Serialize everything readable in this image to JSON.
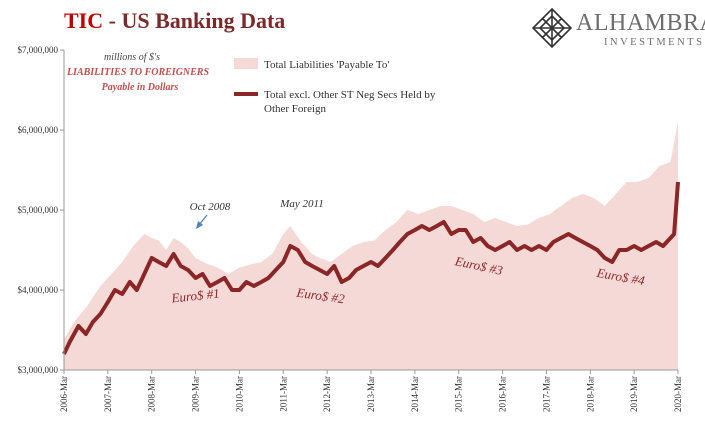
{
  "header": {
    "title_part1": "TIC",
    "title_part2": "- US Banking Data",
    "logo_name": "ALHAMBRA",
    "logo_sub": "INVESTMENTS",
    "logo_icon": "diamond-lattice-icon"
  },
  "colors": {
    "area_fill": "#f5d9d7",
    "line": "#8b2626",
    "title_red": "#c00000",
    "annotation": "#8b2626",
    "arrow": "#4f81bd"
  },
  "annotations": {
    "units_line1": "millions of $'s",
    "units_line2": "LIABILITIES TO FOREIGNERS",
    "units_line3": "Payable in Dollars",
    "oct2008": "Oct 2008",
    "may2011": "May 2011",
    "euro1": "Euro$ #1",
    "euro2": "Euro$ #2",
    "euro3": "Euro$ #3",
    "euro4": "Euro$ #4"
  },
  "chart_data": {
    "type": "area",
    "yticks": [
      "$3,000,000",
      "$4,000,000",
      "$5,000,000",
      "$6,000,000",
      "$7,000,000"
    ],
    "ylim": [
      3000000,
      7000000
    ],
    "x_start": "2006-Mar",
    "x_end": "2020-Mar",
    "xticks": [
      "2006-Mar",
      "2007-Mar",
      "2008-Mar",
      "2009-Mar",
      "2010-Mar",
      "2011-Mar",
      "2012-Mar",
      "2013-Mar",
      "2014-Mar",
      "2015-Mar",
      "2016-Mar",
      "2017-Mar",
      "2018-Mar",
      "2019-Mar",
      "2020-Mar"
    ],
    "series": [
      {
        "name": "Total Liabilities 'Payable To'",
        "kind": "area",
        "x": [
          2006.17,
          2006.4,
          2006.7,
          2007.0,
          2007.25,
          2007.5,
          2007.75,
          2008.0,
          2008.17,
          2008.33,
          2008.5,
          2008.67,
          2008.83,
          2009.0,
          2009.17,
          2009.42,
          2009.67,
          2009.92,
          2010.17,
          2010.42,
          2010.67,
          2010.92,
          2011.17,
          2011.33,
          2011.58,
          2011.83,
          2012.0,
          2012.25,
          2012.5,
          2012.75,
          2013.0,
          2013.25,
          2013.5,
          2013.75,
          2014.0,
          2014.25,
          2014.5,
          2014.75,
          2015.0,
          2015.25,
          2015.5,
          2015.75,
          2016.0,
          2016.25,
          2016.5,
          2016.75,
          2017.0,
          2017.25,
          2017.5,
          2017.75,
          2018.0,
          2018.25,
          2018.5,
          2018.75,
          2019.0,
          2019.25,
          2019.5,
          2019.75,
          2020.0,
          2020.17
        ],
        "values": [
          3380000,
          3600000,
          3800000,
          4050000,
          4200000,
          4350000,
          4550000,
          4700000,
          4650000,
          4620000,
          4500000,
          4650000,
          4600000,
          4520000,
          4400000,
          4330000,
          4280000,
          4200000,
          4280000,
          4320000,
          4350000,
          4450000,
          4700000,
          4800000,
          4600000,
          4450000,
          4400000,
          4350000,
          4450000,
          4550000,
          4600000,
          4620000,
          4750000,
          4850000,
          5000000,
          4950000,
          5000000,
          5050000,
          5050000,
          5000000,
          4950000,
          4850000,
          4900000,
          4850000,
          4800000,
          4820000,
          4900000,
          4950000,
          5050000,
          5150000,
          5200000,
          5150000,
          5050000,
          5200000,
          5350000,
          5350000,
          5400000,
          5550000,
          5600000,
          6100000
        ]
      },
      {
        "name": "Total excl. Other ST Neg Secs Held by Other Foreign",
        "kind": "line",
        "x": [
          2006.17,
          2006.3,
          2006.5,
          2006.67,
          2006.83,
          2007.0,
          2007.17,
          2007.33,
          2007.5,
          2007.67,
          2007.83,
          2008.0,
          2008.17,
          2008.33,
          2008.5,
          2008.67,
          2008.83,
          2009.0,
          2009.17,
          2009.33,
          2009.5,
          2009.67,
          2009.83,
          2010.0,
          2010.17,
          2010.33,
          2010.5,
          2010.67,
          2010.83,
          2011.0,
          2011.17,
          2011.33,
          2011.5,
          2011.67,
          2011.83,
          2012.0,
          2012.17,
          2012.33,
          2012.5,
          2012.67,
          2012.83,
          2013.0,
          2013.17,
          2013.33,
          2013.5,
          2013.67,
          2013.83,
          2014.0,
          2014.17,
          2014.33,
          2014.5,
          2014.67,
          2014.83,
          2015.0,
          2015.17,
          2015.33,
          2015.5,
          2015.67,
          2015.83,
          2016.0,
          2016.17,
          2016.33,
          2016.5,
          2016.67,
          2016.83,
          2017.0,
          2017.17,
          2017.33,
          2017.5,
          2017.67,
          2017.83,
          2018.0,
          2018.17,
          2018.33,
          2018.5,
          2018.67,
          2018.83,
          2019.0,
          2019.17,
          2019.33,
          2019.5,
          2019.67,
          2019.83,
          2020.0,
          2020.08,
          2020.17
        ],
        "values": [
          3200000,
          3350000,
          3550000,
          3450000,
          3600000,
          3700000,
          3850000,
          4000000,
          3950000,
          4100000,
          4000000,
          4200000,
          4400000,
          4350000,
          4300000,
          4450000,
          4300000,
          4250000,
          4150000,
          4200000,
          4050000,
          4100000,
          4150000,
          4000000,
          4000000,
          4100000,
          4050000,
          4100000,
          4150000,
          4250000,
          4350000,
          4550000,
          4500000,
          4350000,
          4300000,
          4250000,
          4200000,
          4300000,
          4100000,
          4150000,
          4250000,
          4300000,
          4350000,
          4300000,
          4400000,
          4500000,
          4600000,
          4700000,
          4750000,
          4800000,
          4750000,
          4800000,
          4850000,
          4700000,
          4750000,
          4750000,
          4600000,
          4650000,
          4550000,
          4500000,
          4550000,
          4600000,
          4500000,
          4550000,
          4500000,
          4550000,
          4500000,
          4600000,
          4650000,
          4700000,
          4650000,
          4600000,
          4550000,
          4500000,
          4400000,
          4350000,
          4500000,
          4500000,
          4550000,
          4500000,
          4550000,
          4600000,
          4550000,
          4650000,
          4700000,
          5350000
        ]
      }
    ]
  }
}
